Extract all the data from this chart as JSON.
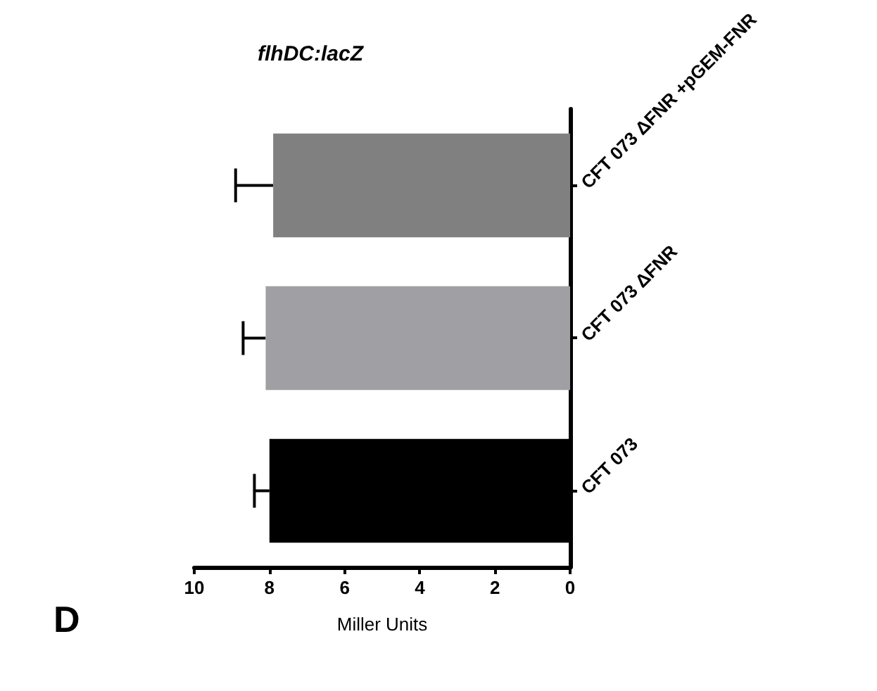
{
  "chart_data": {
    "type": "bar",
    "orientation": "horizontal",
    "title": "flhDC:lacZ",
    "xlabel": "Miller Units",
    "annotations": [
      "D"
    ],
    "categories": [
      "CFT 073 ΔFNR +pGEM-FNR",
      "CFT 073 ΔFNR",
      "CFT 073"
    ],
    "values": [
      7.9,
      8.1,
      8.0
    ],
    "colors": [
      "#808080",
      "#a0a0a4",
      "#000000"
    ],
    "errors": [
      [
        7.9,
        8.9
      ],
      [
        8.1,
        8.7
      ],
      [
        8.0,
        8.4
      ]
    ],
    "xlim": [
      10,
      0
    ],
    "xticks": [
      0,
      2,
      4,
      6,
      8,
      10
    ],
    "grid": false
  }
}
